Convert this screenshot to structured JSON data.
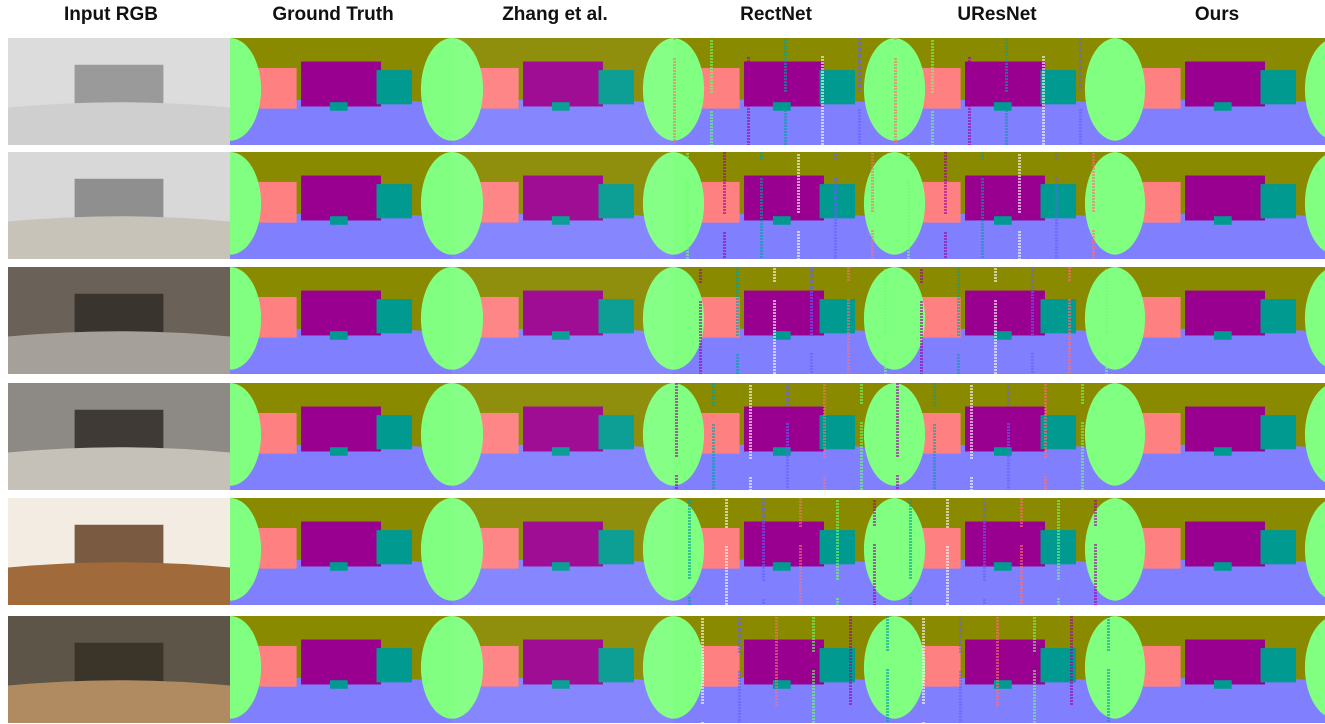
{
  "figure": {
    "columns": [
      {
        "label": "Input RGB",
        "kind": "rgb"
      },
      {
        "label": "Ground Truth",
        "kind": "clean"
      },
      {
        "label": "Zhang et al.",
        "kind": "smooth"
      },
      {
        "label": "RectNet",
        "kind": "noisy"
      },
      {
        "label": "UResNet",
        "kind": "noisy2"
      },
      {
        "label": "Ours",
        "kind": "clean"
      }
    ],
    "rows": 6,
    "palette": {
      "ceiling": "#8a8a00",
      "floor": "#8080ff",
      "left_wall": "#80ff80",
      "right_wall": "#ff8080",
      "front_wall": "#9a0090",
      "back_wall": "#009a90"
    }
  }
}
